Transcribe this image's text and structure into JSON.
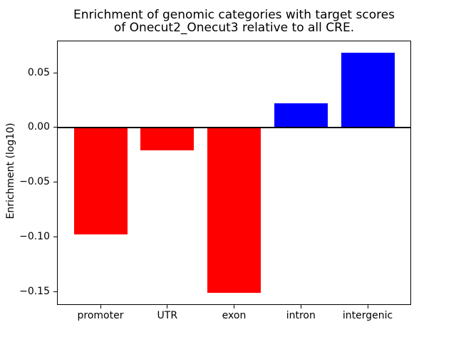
{
  "figure": {
    "background": "#ffffff"
  },
  "chart_data": {
    "type": "bar",
    "title": "Enrichment of genomic categories with target scores of Onecut2_Onecut3 relative to all CRE.",
    "title_lines": [
      "Enrichment of genomic categories with target scores",
      "of Onecut2_Onecut3 relative to all CRE."
    ],
    "xlabel": "",
    "ylabel": "Enrichment (log10)",
    "categories": [
      "promoter",
      "UTR",
      "exon",
      "intron",
      "intergenic"
    ],
    "values": [
      -0.098,
      -0.021,
      -0.151,
      0.022,
      0.068
    ],
    "positive_color": "#0000ff",
    "negative_color": "#ff0000",
    "axis_color": "#000000",
    "ylim": [
      -0.162,
      0.079
    ],
    "xlim": [
      -0.64,
      4.64
    ],
    "bar_width_fraction": 0.8,
    "yticks": [
      {
        "value": 0.05,
        "label": "0.05"
      },
      {
        "value": 0.0,
        "label": "0.00"
      },
      {
        "value": -0.05,
        "label": "−0.05"
      },
      {
        "value": -0.1,
        "label": "−0.10"
      },
      {
        "value": -0.15,
        "label": "−0.15"
      }
    ],
    "zero_line": true,
    "grid": false,
    "legend": null
  }
}
